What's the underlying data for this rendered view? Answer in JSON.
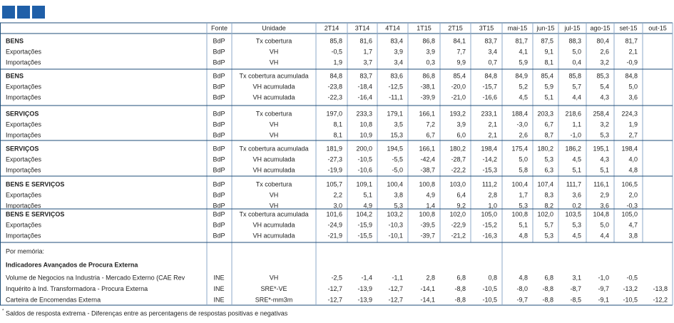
{
  "table": {
    "header": [
      "Fonte",
      "Unidade",
      "2T14",
      "3T14",
      "4T14",
      "1T15",
      "2T15",
      "3T15",
      "mai-15",
      "jun-15",
      "jul-15",
      "ago-15",
      "set-15",
      "out-15"
    ],
    "groups": [
      [
        {
          "label": "BENS",
          "fonte": "BdP",
          "unidade": "Tx cobertura",
          "values": [
            "85,8",
            "81,6",
            "83,4",
            "86,8",
            "84,1",
            "83,7",
            "81,7",
            "87,5",
            "88,3",
            "80,4",
            "81,7",
            null
          ]
        },
        {
          "label": "Exportações",
          "fonte": "BdP",
          "unidade": "VH",
          "values": [
            "-0,5",
            "1,7",
            "3,9",
            "3,9",
            "7,7",
            "3,4",
            "4,1",
            "9,1",
            "5,0",
            "2,6",
            "2,1",
            null
          ]
        },
        {
          "label": "Importações",
          "fonte": "BdP",
          "unidade": "VH",
          "values": [
            "1,9",
            "3,7",
            "3,4",
            "0,3",
            "9,9",
            "0,7",
            "5,9",
            "8,1",
            "0,4",
            "3,2",
            "-0,9",
            null
          ]
        }
      ],
      [
        {
          "label": "BENS",
          "fonte": "BdP",
          "unidade": "Tx cobertura acumulada",
          "values": [
            "84,8",
            "83,7",
            "83,6",
            "86,8",
            "85,4",
            "84,8",
            "84,9",
            "85,4",
            "85,8",
            "85,3",
            "84,8",
            null
          ]
        },
        {
          "label": "Exportações",
          "fonte": "BdP",
          "unidade": "VH acumulada",
          "values": [
            "-23,8",
            "-18,4",
            "-12,5",
            "-38,1",
            "-20,0",
            "-15,7",
            "5,2",
            "5,9",
            "5,7",
            "5,4",
            "5,0",
            null
          ]
        },
        {
          "label": "Importações",
          "fonte": "BdP",
          "unidade": "VH acumulada",
          "values": [
            "-22,3",
            "-16,4",
            "-11,1",
            "-39,9",
            "-21,0",
            "-16,6",
            "4,5",
            "5,1",
            "4,4",
            "4,3",
            "3,6",
            null
          ]
        }
      ],
      [
        {
          "label": "SERVIÇOS",
          "fonte": "BdP",
          "unidade": "Tx cobertura",
          "values": [
            "197,0",
            "233,3",
            "179,1",
            "166,1",
            "193,2",
            "233,1",
            "188,4",
            "203,3",
            "218,6",
            "258,4",
            "224,3",
            null
          ]
        },
        {
          "label": "Exportações",
          "fonte": "BdP",
          "unidade": "VH",
          "values": [
            "8,1",
            "10,8",
            "3,5",
            "7,2",
            "3,9",
            "2,1",
            "-3,0",
            "6,7",
            "1,1",
            "3,2",
            "1,9",
            null
          ]
        },
        {
          "label": "Importações",
          "fonte": "BdP",
          "unidade": "VH",
          "values": [
            "8,1",
            "10,9",
            "15,3",
            "6,7",
            "6,0",
            "2,1",
            "2,6",
            "8,7",
            "-1,0",
            "5,3",
            "2,7",
            null
          ]
        }
      ],
      [
        {
          "label": "SERVIÇOS",
          "fonte": "BdP",
          "unidade": "Tx cobertura acumulada",
          "values": [
            "181,9",
            "200,0",
            "194,5",
            "166,1",
            "180,2",
            "198,4",
            "175,4",
            "180,2",
            "186,2",
            "195,1",
            "198,4",
            null
          ]
        },
        {
          "label": "Exportações",
          "fonte": "BdP",
          "unidade": "VH acumulada",
          "values": [
            "-27,3",
            "-10,5",
            "-5,5",
            "-42,4",
            "-28,7",
            "-14,2",
            "5,0",
            "5,3",
            "4,5",
            "4,3",
            "4,0",
            null
          ]
        },
        {
          "label": "Importações",
          "fonte": "BdP",
          "unidade": "VH acumulada",
          "values": [
            "-19,9",
            "-10,6",
            "-5,0",
            "-38,7",
            "-22,2",
            "-15,3",
            "5,8",
            "6,3",
            "5,1",
            "5,1",
            "4,8",
            null
          ]
        }
      ],
      [
        {
          "label": "BENS E SERVIÇOS",
          "fonte": "BdP",
          "unidade": "Tx cobertura",
          "values": [
            "105,7",
            "109,1",
            "100,4",
            "100,8",
            "103,0",
            "111,2",
            "100,4",
            "107,4",
            "111,7",
            "116,1",
            "106,5",
            null
          ]
        },
        {
          "label": "Exportações",
          "fonte": "BdP",
          "unidade": "VH",
          "values": [
            "2,2",
            "5,1",
            "3,8",
            "4,9",
            "6,4",
            "2,8",
            "1,7",
            "8,3",
            "3,6",
            "2,9",
            "2,0",
            null
          ]
        },
        {
          "label": "Importações",
          "fonte": "BdP",
          "unidade": "VH",
          "values": [
            "3,0",
            "4,9",
            "5,3",
            "1,4",
            "9,2",
            "1,0",
            "5,3",
            "8,2",
            "0,2",
            "3,6",
            "-0,3",
            null
          ]
        }
      ],
      [
        {
          "label": "BENS E SERVIÇOS",
          "fonte": "BdP",
          "unidade": "Tx cobertura acumulada",
          "values": [
            "101,6",
            "104,2",
            "103,2",
            "100,8",
            "102,0",
            "105,0",
            "100,8",
            "102,0",
            "103,5",
            "104,8",
            "105,0",
            null
          ]
        },
        {
          "label": "Exportações",
          "fonte": "BdP",
          "unidade": "VH acumulada",
          "values": [
            "-24,9",
            "-15,9",
            "-10,3",
            "-39,5",
            "-22,9",
            "-15,2",
            "5,1",
            "5,7",
            "5,3",
            "5,0",
            "4,7",
            null
          ]
        },
        {
          "label": "Importações",
          "fonte": "BdP",
          "unidade": "VH acumulada",
          "values": [
            "-21,9",
            "-15,5",
            "-10,1",
            "-39,7",
            "-21,2",
            "-16,3",
            "4,8",
            "5,3",
            "4,5",
            "4,4",
            "3,8",
            null
          ]
        }
      ]
    ],
    "memo_title": "Por memória:",
    "memo_subtitle": "Indicadores Avançados de Procura Externa",
    "memo_rows": [
      {
        "label": "Volume de Negocios na Industria - Mercado Externo (CAE Rev",
        "fonte": "INE",
        "unidade": "VH",
        "values": [
          "-2,5",
          "-1,4",
          "-1,1",
          "2,8",
          "6,8",
          "0,8",
          "4,8",
          "6,8",
          "3,1",
          "-1,0",
          "-0,5",
          null
        ]
      },
      {
        "label": "Inquérito à Ind. Transformadora - Procura Externa",
        "fonte": "INE",
        "unidade": "SRE*-VE",
        "values": [
          "-12,7",
          "-13,9",
          "-12,7",
          "-14,1",
          "-8,8",
          "-10,5",
          "-8,0",
          "-8,8",
          "-8,7",
          "-9,7",
          "-13,2",
          "-13,8"
        ]
      },
      {
        "label": "Carteira de Encomendas Externa",
        "fonte": "INE",
        "unidade": "SRE*-mm3m",
        "values": [
          "-12,7",
          "-13,9",
          "-12,7",
          "-14,1",
          "-8,8",
          "-10,5",
          "-9,7",
          "-8,8",
          "-8,5",
          "-9,1",
          "-10,5",
          "-12,2"
        ]
      }
    ],
    "footnote_marker": "*",
    "footnote": "Saldos de resposta extrema - Diferenças entre as percentagens de respostas positivas e negativas"
  }
}
